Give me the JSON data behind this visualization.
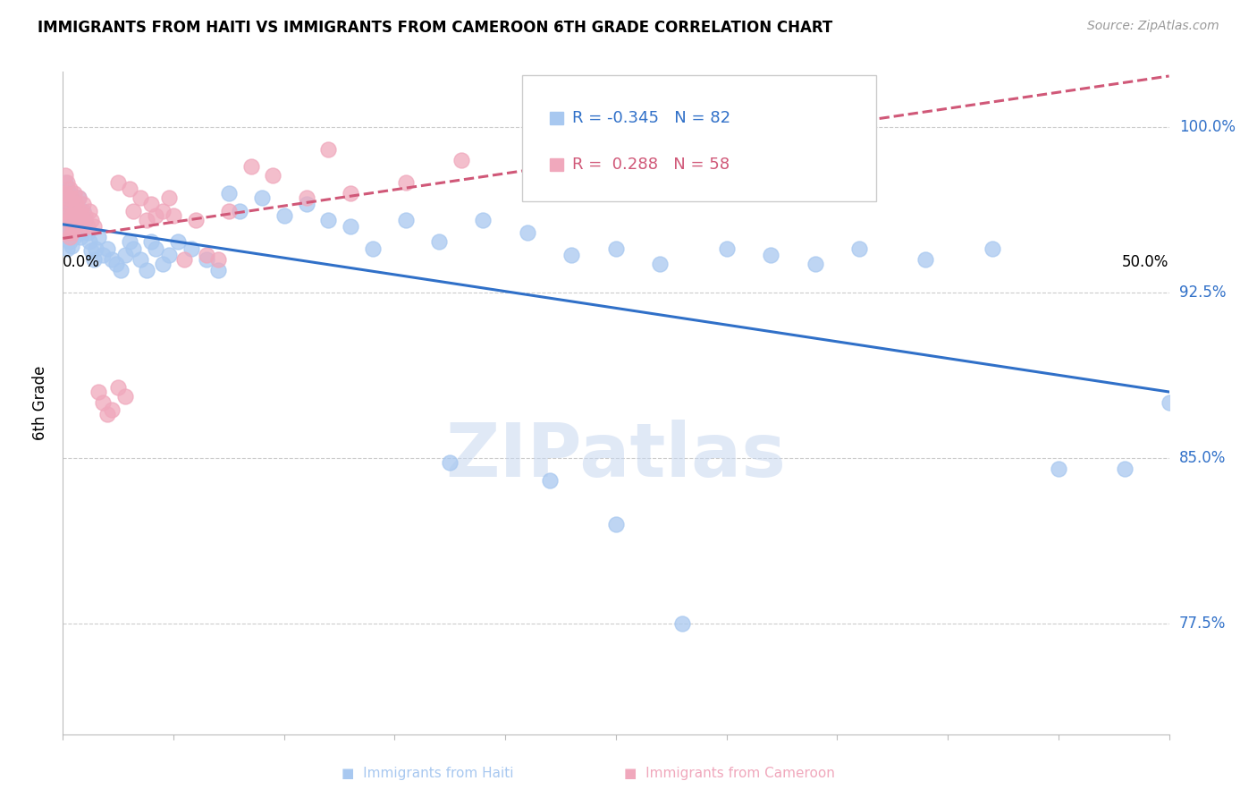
{
  "title": "IMMIGRANTS FROM HAITI VS IMMIGRANTS FROM CAMEROON 6TH GRADE CORRELATION CHART",
  "source": "Source: ZipAtlas.com",
  "ylabel": "6th Grade",
  "haiti_R": "-0.345",
  "haiti_N": "82",
  "cameroon_R": "0.288",
  "cameroon_N": "58",
  "haiti_color": "#A8C8F0",
  "cameroon_color": "#F0A8BC",
  "haiti_line_color": "#3070C8",
  "cameroon_line_color": "#D05878",
  "xlim": [
    0.0,
    0.5
  ],
  "ylim": [
    0.725,
    1.025
  ],
  "yticks": [
    0.775,
    0.85,
    0.925,
    1.0
  ],
  "ytick_labels": [
    "77.5%",
    "85.0%",
    "92.5%",
    "100.0%"
  ],
  "watermark_text": "ZIPatlas",
  "haiti_scatter_x": [
    0.001,
    0.001,
    0.001,
    0.001,
    0.002,
    0.002,
    0.002,
    0.002,
    0.002,
    0.003,
    0.003,
    0.003,
    0.003,
    0.004,
    0.004,
    0.004,
    0.004,
    0.005,
    0.005,
    0.005,
    0.006,
    0.006,
    0.007,
    0.007,
    0.007,
    0.008,
    0.008,
    0.009,
    0.009,
    0.01,
    0.011,
    0.012,
    0.013,
    0.014,
    0.015,
    0.016,
    0.018,
    0.02,
    0.022,
    0.024,
    0.026,
    0.028,
    0.03,
    0.032,
    0.035,
    0.038,
    0.04,
    0.042,
    0.045,
    0.048,
    0.052,
    0.058,
    0.065,
    0.07,
    0.075,
    0.08,
    0.09,
    0.1,
    0.11,
    0.12,
    0.13,
    0.14,
    0.155,
    0.17,
    0.19,
    0.21,
    0.23,
    0.25,
    0.27,
    0.3,
    0.32,
    0.34,
    0.36,
    0.39,
    0.42,
    0.45,
    0.48,
    0.5,
    0.175,
    0.22,
    0.25,
    0.28
  ],
  "haiti_scatter_y": [
    0.975,
    0.965,
    0.958,
    0.952,
    0.972,
    0.965,
    0.958,
    0.952,
    0.945,
    0.97,
    0.962,
    0.955,
    0.948,
    0.968,
    0.96,
    0.953,
    0.946,
    0.965,
    0.958,
    0.95,
    0.962,
    0.955,
    0.968,
    0.96,
    0.952,
    0.958,
    0.95,
    0.962,
    0.955,
    0.958,
    0.952,
    0.948,
    0.944,
    0.94,
    0.945,
    0.95,
    0.942,
    0.945,
    0.94,
    0.938,
    0.935,
    0.942,
    0.948,
    0.945,
    0.94,
    0.935,
    0.948,
    0.945,
    0.938,
    0.942,
    0.948,
    0.945,
    0.94,
    0.935,
    0.97,
    0.962,
    0.968,
    0.96,
    0.965,
    0.958,
    0.955,
    0.945,
    0.958,
    0.948,
    0.958,
    0.952,
    0.942,
    0.945,
    0.938,
    0.945,
    0.942,
    0.938,
    0.945,
    0.94,
    0.945,
    0.845,
    0.845,
    0.875,
    0.848,
    0.84,
    0.82,
    0.775
  ],
  "cameroon_scatter_x": [
    0.001,
    0.001,
    0.001,
    0.002,
    0.002,
    0.002,
    0.002,
    0.003,
    0.003,
    0.003,
    0.003,
    0.004,
    0.004,
    0.004,
    0.005,
    0.005,
    0.005,
    0.006,
    0.006,
    0.007,
    0.007,
    0.008,
    0.008,
    0.009,
    0.009,
    0.01,
    0.011,
    0.012,
    0.013,
    0.014,
    0.016,
    0.018,
    0.02,
    0.022,
    0.025,
    0.028,
    0.032,
    0.038,
    0.042,
    0.048,
    0.055,
    0.065,
    0.075,
    0.085,
    0.095,
    0.11,
    0.13,
    0.155,
    0.18,
    0.12,
    0.025,
    0.03,
    0.035,
    0.04,
    0.045,
    0.05,
    0.06,
    0.07
  ],
  "cameroon_scatter_y": [
    0.978,
    0.97,
    0.962,
    0.975,
    0.968,
    0.96,
    0.952,
    0.972,
    0.965,
    0.958,
    0.95,
    0.968,
    0.96,
    0.952,
    0.97,
    0.962,
    0.954,
    0.965,
    0.958,
    0.968,
    0.96,
    0.962,
    0.954,
    0.965,
    0.958,
    0.96,
    0.955,
    0.962,
    0.958,
    0.955,
    0.88,
    0.875,
    0.87,
    0.872,
    0.882,
    0.878,
    0.962,
    0.958,
    0.96,
    0.968,
    0.94,
    0.942,
    0.962,
    0.982,
    0.978,
    0.968,
    0.97,
    0.975,
    0.985,
    0.99,
    0.975,
    0.972,
    0.968,
    0.965,
    0.962,
    0.96,
    0.958,
    0.94
  ]
}
